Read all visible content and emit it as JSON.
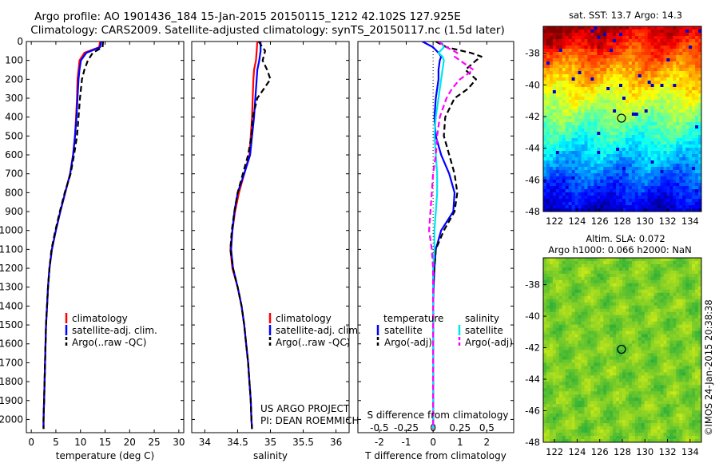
{
  "header": {
    "line1": "Argo profile: AO 1901436_184 15-Jan-2015 20150115_1212 42.102S 127.925E",
    "line2": "Climatology: CARS2009. Satellite-adjusted climatology: synTS_20150117.nc (1.5d later)"
  },
  "colors": {
    "climatology": "#ff0000",
    "satellite": "#0000ff",
    "argo": "#000000",
    "satellite_salinity": "#00e5ee",
    "argo_salinity_adj": "#ff00ff"
  },
  "chart_data": [
    {
      "type": "line",
      "panel": "temperature",
      "xlabel": "temperature (deg C)",
      "ylabel": "",
      "xlim": [
        -1,
        31
      ],
      "ylim": [
        2070,
        0
      ],
      "xticks": [
        "0",
        "5",
        "10",
        "15",
        "20",
        "25",
        "30"
      ],
      "yticks": [
        "0",
        "100",
        "200",
        "300",
        "400",
        "500",
        "600",
        "700",
        "800",
        "900",
        "1000",
        "1100",
        "1200",
        "1300",
        "1400",
        "1500",
        "1600",
        "1700",
        "1800",
        "1900",
        "2000"
      ],
      "depth": [
        0,
        30,
        60,
        100,
        150,
        200,
        300,
        400,
        500,
        600,
        700,
        800,
        900,
        1000,
        1100,
        1200,
        1300,
        1400,
        1500,
        1600,
        1700,
        1800,
        1900,
        2000,
        2050
      ],
      "series": [
        {
          "name": "climatology",
          "style": "solid",
          "values": [
            14.0,
            13.8,
            10.8,
            9.8,
            9.6,
            9.4,
            9.3,
            9.1,
            8.9,
            8.5,
            7.9,
            6.9,
            5.9,
            5.0,
            4.2,
            3.7,
            3.4,
            3.2,
            3.0,
            2.9,
            2.8,
            2.7,
            2.6,
            2.5,
            2.5
          ]
        },
        {
          "name": "satellite-adj. clim.",
          "style": "solid",
          "values": [
            14.2,
            14.0,
            11.2,
            10.1,
            9.8,
            9.6,
            9.4,
            9.2,
            8.9,
            8.5,
            7.9,
            6.9,
            5.9,
            5.0,
            4.2,
            3.7,
            3.4,
            3.2,
            3.0,
            2.9,
            2.8,
            2.7,
            2.6,
            2.5,
            2.5
          ]
        },
        {
          "name": "Argo(..raw -QC)",
          "style": "dashed",
          "values": [
            14.6,
            14.5,
            12.5,
            11.5,
            10.8,
            10.3,
            9.9,
            9.6,
            9.3,
            8.7,
            8.0,
            6.8,
            5.8,
            4.9,
            4.1,
            3.7,
            3.4,
            3.2,
            3.0,
            2.9,
            2.8,
            2.7,
            2.6,
            2.5,
            2.5
          ]
        }
      ],
      "legend": [
        "climatology",
        "satellite-adj. clim.",
        "Argo(..raw -QC)"
      ]
    },
    {
      "type": "line",
      "panel": "salinity",
      "xlabel": "salinity",
      "xlim": [
        33.8,
        36.2
      ],
      "ylim": [
        2070,
        0
      ],
      "xticks": [
        "34",
        "34.5",
        "35",
        "35.5",
        "36"
      ],
      "depth": [
        0,
        50,
        100,
        150,
        200,
        300,
        400,
        500,
        600,
        700,
        800,
        900,
        1000,
        1100,
        1200,
        1300,
        1400,
        1500,
        1600,
        1700,
        1800,
        1900,
        2000,
        2050
      ],
      "series": [
        {
          "name": "climatology",
          "style": "solid",
          "values": [
            34.8,
            34.79,
            34.78,
            34.75,
            34.74,
            34.73,
            34.72,
            34.7,
            34.68,
            34.6,
            34.52,
            34.46,
            34.42,
            34.39,
            34.42,
            34.5,
            34.56,
            34.6,
            34.63,
            34.66,
            34.68,
            34.7,
            34.71,
            34.72
          ]
        },
        {
          "name": "satellite-adj. clim.",
          "style": "solid",
          "values": [
            34.85,
            34.85,
            34.83,
            34.8,
            34.79,
            34.77,
            34.75,
            34.72,
            34.69,
            34.6,
            34.5,
            34.45,
            34.42,
            34.4,
            34.43,
            34.5,
            34.56,
            34.6,
            34.63,
            34.66,
            34.68,
            34.7,
            34.71,
            34.72
          ]
        },
        {
          "name": "Argo(..raw -QC)",
          "style": "dashed",
          "values": [
            34.82,
            34.92,
            34.88,
            34.95,
            35.0,
            34.8,
            34.73,
            34.71,
            34.66,
            34.58,
            34.5,
            34.45,
            34.41,
            34.39,
            34.43,
            34.5,
            34.56,
            34.6,
            34.63,
            34.66,
            34.68,
            34.7,
            34.71,
            34.72
          ]
        }
      ],
      "legend": [
        "climatology",
        "satellite-adj. clim.",
        "Argo(..raw -QC)"
      ]
    },
    {
      "type": "line",
      "panel": "difference",
      "xlabel": "T difference from climatology",
      "top_label": "S difference from climatology",
      "xlim": [
        -2.8,
        3.0
      ],
      "ylim": [
        2070,
        0
      ],
      "xticks": [
        "-2",
        "-1",
        "0",
        "1",
        "2"
      ],
      "top_ticks": [
        "-0.5",
        "-0.25",
        "0",
        "0.25",
        "0.5"
      ],
      "depth": [
        0,
        30,
        60,
        80,
        100,
        150,
        200,
        250,
        300,
        400,
        500,
        600,
        700,
        800,
        900,
        1000,
        1100,
        1200,
        1300,
        1400,
        1500,
        1700,
        1900,
        2050
      ],
      "series": [
        {
          "name": "temperature satellite",
          "style": "solid",
          "values": [
            -0.4,
            0.0,
            0.2,
            0.3,
            0.25,
            0.2,
            0.2,
            0.15,
            0.1,
            0.05,
            0.1,
            0.3,
            0.6,
            0.8,
            0.75,
            0.3,
            0.1,
            0.05,
            0.02,
            0.0,
            0.0,
            0.0,
            0.0,
            0.0
          ]
        },
        {
          "name": "temperature Argo(-adj)",
          "style": "dashed",
          "values": [
            0.1,
            0.5,
            1.4,
            1.8,
            1.6,
            1.2,
            1.6,
            1.3,
            0.8,
            0.45,
            0.4,
            0.6,
            0.8,
            0.9,
            0.8,
            0.4,
            0.1,
            0.05,
            0.0,
            0.0,
            0.0,
            0.0,
            0.0,
            0.0
          ]
        },
        {
          "name": "salinity satellite",
          "style": "solid",
          "values": [
            0.3,
            0.4,
            0.2,
            0.35,
            0.4,
            0.35,
            0.3,
            0.25,
            0.2,
            0.1,
            0.05,
            0.1,
            0.15,
            0.15,
            0.1,
            0.05,
            0.05,
            0.0,
            0.0,
            0.0,
            0.0,
            0.0,
            0.0,
            0.0
          ]
        },
        {
          "name": "salinity Argo(-adj)",
          "style": "dashed",
          "values": [
            0.2,
            0.5,
            0.9,
            0.8,
            1.0,
            1.5,
            1.0,
            0.7,
            0.5,
            0.25,
            0.15,
            0.1,
            0.0,
            -0.05,
            -0.1,
            -0.15,
            -0.05,
            0.0,
            0.0,
            0.0,
            0.0,
            0.0,
            0.0,
            0.0
          ]
        }
      ],
      "legend_temperature_title": "temperature",
      "legend_salinity_title": "salinity",
      "legend_labels": {
        "satellite": "satellite",
        "argo": "Argo(-adj)"
      }
    }
  ],
  "project": {
    "line1": "US ARGO PROJECT",
    "line2": "PI: DEAN ROEMMICH"
  },
  "maps": [
    {
      "title": "sat. SST: 13.7 Argo: 14.3",
      "title2": "",
      "colormap": "jet",
      "xticks": [
        "122",
        "124",
        "126",
        "128",
        "130",
        "132",
        "134"
      ],
      "yticks": [
        "-38",
        "-40",
        "-42",
        "-44",
        "-46",
        "-48"
      ],
      "lon_range": [
        121,
        135
      ],
      "lat_range": [
        -48,
        -36.3
      ],
      "marker": {
        "lon": 127.925,
        "lat": -42.102
      }
    },
    {
      "title": "Altim. SLA: 0.072",
      "title2": "Argo h1000: 0.066 h2000: NaN",
      "colormap": "green",
      "xticks": [
        "122",
        "124",
        "126",
        "128",
        "130",
        "132",
        "134"
      ],
      "yticks": [
        "-38",
        "-40",
        "-42",
        "-44",
        "-46",
        "-48"
      ],
      "lon_range": [
        121,
        135
      ],
      "lat_range": [
        -48,
        -36.3
      ],
      "marker": {
        "lon": 127.925,
        "lat": -42.102
      }
    }
  ],
  "footer": {
    "stamp": "©IMOS 24-Jan-2015 20:38:38"
  }
}
